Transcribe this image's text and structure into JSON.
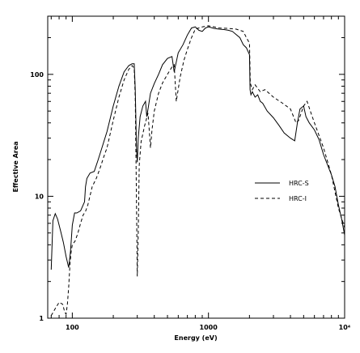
{
  "chart_data": {
    "type": "line",
    "title": "",
    "xlabel": "Energy (eV)",
    "ylabel": "Effective Area",
    "xscale": "log",
    "yscale": "log",
    "xlim": [
      66,
      10000
    ],
    "ylim": [
      1,
      300
    ],
    "grid": false,
    "legend_position": "right-center",
    "x_ticks": [
      {
        "value": 100,
        "label": "100"
      },
      {
        "value": 1000,
        "label": "1000"
      },
      {
        "value": 10000,
        "label": "10⁴"
      }
    ],
    "y_ticks": [
      {
        "value": 1,
        "label": "1"
      },
      {
        "value": 10,
        "label": "10"
      },
      {
        "value": 100,
        "label": "100"
      }
    ],
    "series": [
      {
        "name": "HRC-S",
        "style": "solid",
        "color": "#000000",
        "x": [
          70,
          72,
          75,
          78,
          82,
          86,
          90,
          94,
          97,
          100,
          104,
          108,
          115,
          123,
          125,
          128,
          135,
          145,
          155,
          165,
          180,
          200,
          220,
          240,
          260,
          275,
          285,
          290,
          296,
          300,
          305,
          315,
          330,
          345,
          352,
          360,
          375,
          400,
          430,
          460,
          500,
          540,
          560,
          600,
          650,
          700,
          750,
          800,
          850,
          900,
          950,
          1000,
          1100,
          1200,
          1300,
          1400,
          1500,
          1600,
          1700,
          1800,
          1900,
          2000,
          2020,
          2050,
          2100,
          2200,
          2300,
          2400,
          2500,
          2700,
          3000,
          3300,
          3600,
          4000,
          4300,
          4500,
          4700,
          5000,
          5200,
          5500,
          6000,
          6500,
          7000,
          7500,
          8000,
          8500,
          9000,
          9500,
          10000
        ],
        "values": [
          2.5,
          6.3,
          7.2,
          6.5,
          5.2,
          4.2,
          3.2,
          2.6,
          3.5,
          5.8,
          7.3,
          7.3,
          7.6,
          9.0,
          12,
          14,
          15.5,
          16,
          20,
          25,
          34,
          55,
          80,
          105,
          118,
          122,
          122,
          75,
          25,
          19,
          30,
          45,
          55,
          60,
          45,
          52,
          70,
          84,
          100,
          120,
          135,
          140,
          105,
          150,
          175,
          210,
          240,
          245,
          230,
          225,
          240,
          245,
          238,
          235,
          233,
          230,
          225,
          212,
          200,
          175,
          165,
          145,
          75,
          68,
          72,
          65,
          68,
          60,
          58,
          50,
          44,
          38,
          33,
          30,
          28.5,
          40,
          52,
          55,
          45,
          40,
          35,
          29,
          22,
          18,
          15,
          12,
          8.5,
          6.5,
          4.8
        ]
      },
      {
        "name": "HRC-I",
        "style": "dashed",
        "color": "#000000",
        "x": [
          70,
          75,
          80,
          85,
          88,
          90,
          92,
          94,
          96,
          98,
          100,
          105,
          110,
          115,
          120,
          125,
          130,
          140,
          150,
          160,
          170,
          180,
          200,
          220,
          240,
          260,
          275,
          285,
          290,
          295,
          300,
          305,
          310,
          320,
          340,
          360,
          375,
          385,
          400,
          430,
          460,
          500,
          540,
          560,
          580,
          620,
          660,
          700,
          750,
          800,
          900,
          1000,
          1100,
          1200,
          1400,
          1600,
          1800,
          1900,
          2000,
          2030,
          2100,
          2200,
          2400,
          2600,
          3000,
          3500,
          4000,
          4400,
          4600,
          5000,
          5300,
          5600,
          6000,
          7000,
          8000,
          9000,
          10000
        ],
        "values": [
          1.05,
          1.2,
          1.35,
          1.3,
          1.12,
          1.08,
          1.3,
          1.8,
          2.7,
          3.5,
          4.0,
          4.3,
          5.0,
          6.0,
          7.0,
          7.5,
          8.5,
          12,
          14,
          17,
          21,
          25,
          42,
          65,
          90,
          110,
          118,
          112,
          65,
          12,
          2.2,
          5,
          18,
          28,
          38,
          48,
          25,
          35,
          50,
          70,
          85,
          100,
          115,
          120,
          60,
          95,
          130,
          160,
          200,
          235,
          245,
          250,
          245,
          240,
          238,
          235,
          225,
          200,
          180,
          85,
          75,
          82,
          72,
          75,
          65,
          58,
          52,
          40,
          42,
          55,
          60,
          50,
          40,
          25,
          15,
          8,
          5.5
        ]
      }
    ]
  }
}
